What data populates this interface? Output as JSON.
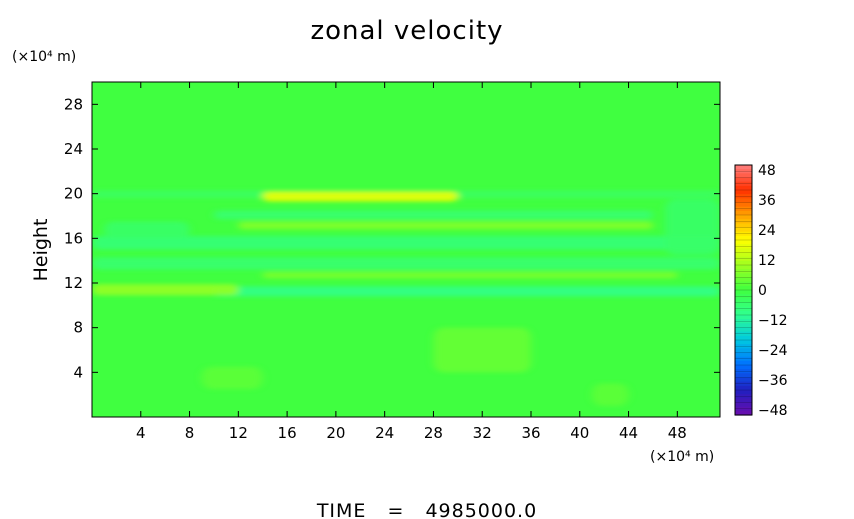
{
  "chart_data": {
    "type": "heatmap",
    "title": "zonal velocity",
    "ylabel": "Height",
    "y_unit": "(×10⁴ m)",
    "x_unit": "(×10⁴ m)",
    "x_ticks": [
      4,
      8,
      12,
      16,
      20,
      24,
      28,
      32,
      36,
      40,
      44,
      48
    ],
    "y_ticks": [
      4,
      8,
      12,
      16,
      20,
      24,
      28
    ],
    "xlim": [
      0,
      51.5
    ],
    "ylim": [
      0,
      30
    ],
    "colorbar": {
      "ticks": [
        48,
        36,
        24,
        12,
        0,
        -12,
        -24,
        -36,
        -48
      ],
      "tick_labels": [
        "48",
        "36",
        "24",
        "12",
        "0",
        "−12",
        "−24",
        "−36",
        "−48"
      ],
      "range": [
        -50,
        50
      ],
      "colors": [
        "#6a0dad",
        "#2020c0",
        "#0070ff",
        "#00c8e0",
        "#30ff90",
        "#40ff40",
        "#a0ff20",
        "#ffff00",
        "#ffa000",
        "#ff3000",
        "#ff8080"
      ]
    },
    "background_value": 0,
    "features": [
      {
        "x_range": [
          0,
          51.5
        ],
        "y_range": [
          19.6,
          20.3
        ],
        "value": -4
      },
      {
        "x_range": [
          14,
          30
        ],
        "y_range": [
          19.3,
          20.2
        ],
        "value": 18
      },
      {
        "x_range": [
          10,
          46
        ],
        "y_range": [
          17.7,
          18.5
        ],
        "value": -6
      },
      {
        "x_range": [
          12,
          46
        ],
        "y_range": [
          16.8,
          17.5
        ],
        "value": 7
      },
      {
        "x_range": [
          0,
          51.5
        ],
        "y_range": [
          15.0,
          16.2
        ],
        "value": -7
      },
      {
        "x_range": [
          0,
          51.5
        ],
        "y_range": [
          13.2,
          14.3
        ],
        "value": -6
      },
      {
        "x_range": [
          14,
          48
        ],
        "y_range": [
          12.4,
          13.0
        ],
        "value": 6
      },
      {
        "x_range": [
          10,
          51.5
        ],
        "y_range": [
          10.8,
          11.7
        ],
        "value": -9
      },
      {
        "x_range": [
          0,
          12
        ],
        "y_range": [
          10.9,
          11.9
        ],
        "value": 9
      },
      {
        "x_range": [
          1,
          8
        ],
        "y_range": [
          16.0,
          17.5
        ],
        "value": -5
      },
      {
        "x_range": [
          47,
          51.5
        ],
        "y_range": [
          14.5,
          19.5
        ],
        "value": -5
      },
      {
        "x_range": [
          9,
          14
        ],
        "y_range": [
          2.5,
          4.5
        ],
        "value": 3
      },
      {
        "x_range": [
          28,
          36
        ],
        "y_range": [
          4.0,
          8.0
        ],
        "value": 4
      },
      {
        "x_range": [
          41,
          44
        ],
        "y_range": [
          1.0,
          3.0
        ],
        "value": 3
      }
    ]
  },
  "footer": {
    "label": "TIME",
    "equals": "=",
    "value": "4985000.0"
  }
}
